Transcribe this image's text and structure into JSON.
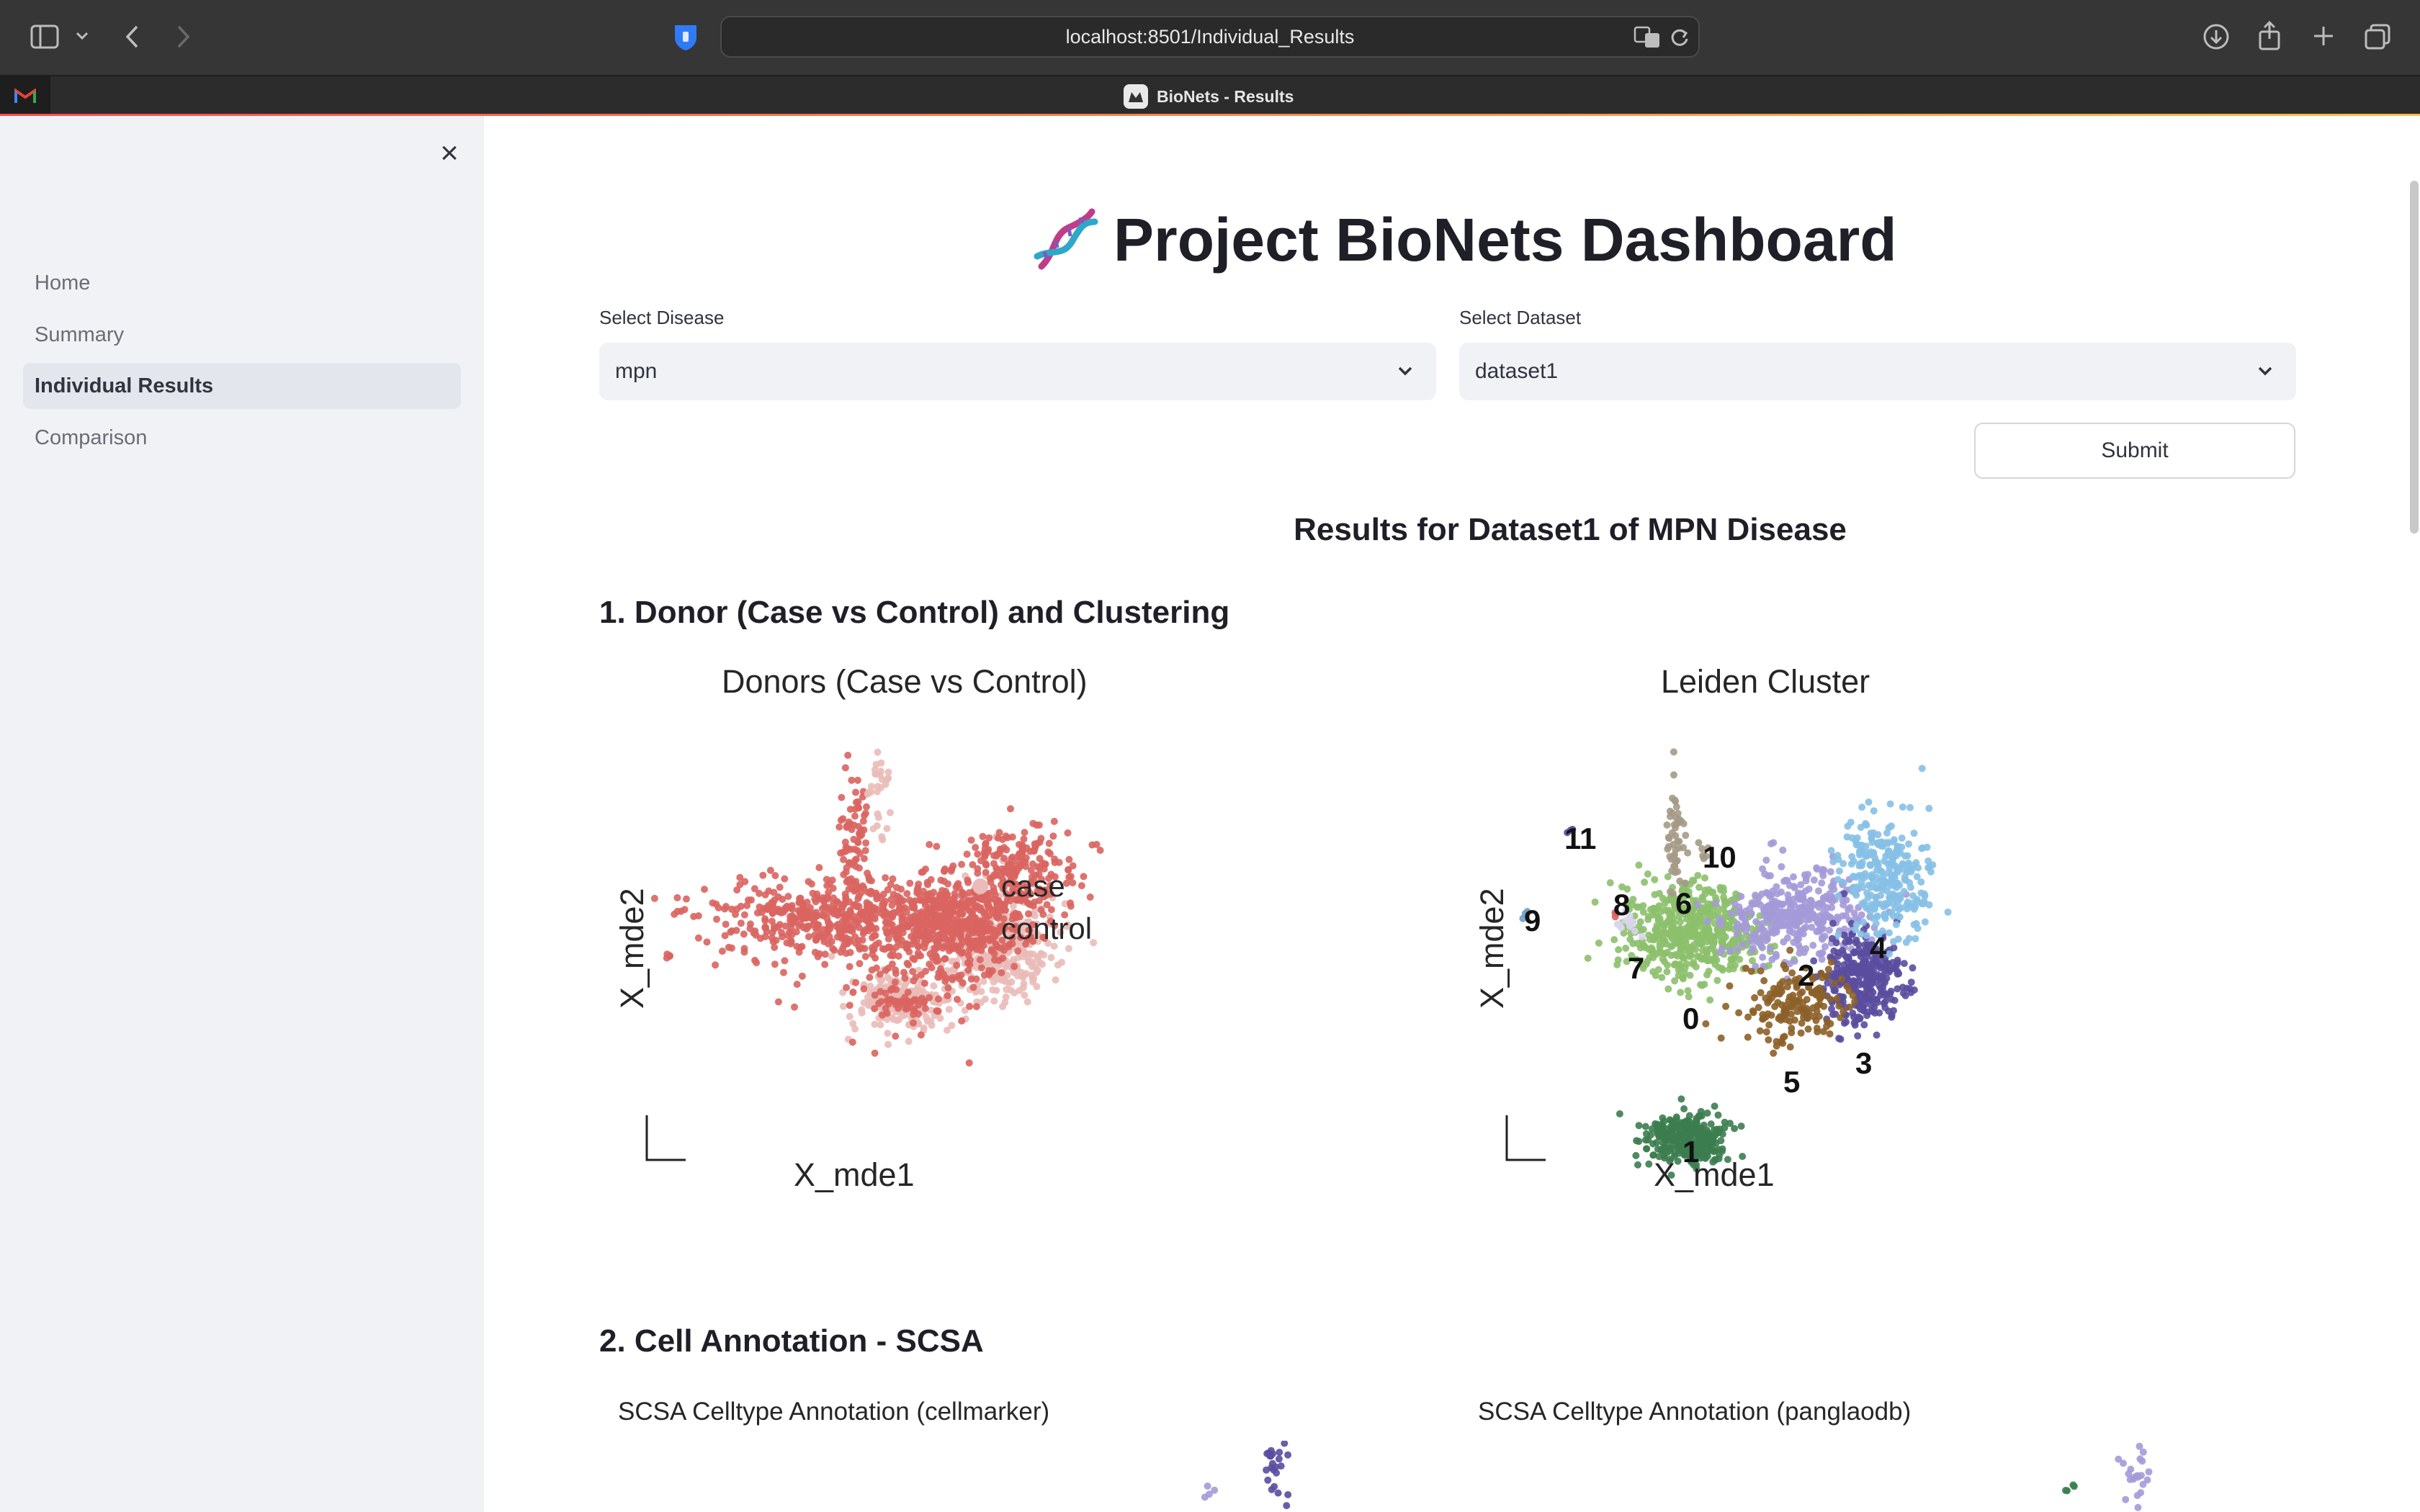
{
  "browser": {
    "url": "localhost:8501/Individual_Results",
    "tab_title": "BioNets - Results"
  },
  "sidebar": {
    "items": [
      {
        "label": "Home",
        "active": false
      },
      {
        "label": "Summary",
        "active": false
      },
      {
        "label": "Individual Results",
        "active": true
      },
      {
        "label": "Comparison",
        "active": false
      }
    ]
  },
  "header": {
    "title": "Project BioNets Dashboard"
  },
  "form": {
    "disease_label": "Select Disease",
    "disease_value": "mpn",
    "dataset_label": "Select Dataset",
    "dataset_value": "dataset1",
    "submit_label": "Submit"
  },
  "results": {
    "heading": "Results for Dataset1 of MPN Disease"
  },
  "sections": [
    {
      "title": "1. Donor (Case vs Control) and Clustering"
    },
    {
      "title": "2. Cell Annotation - SCSA"
    }
  ],
  "colors": {
    "case": "#eabbb8",
    "control": "#d9645f",
    "accent": "#ff4b4b"
  },
  "donor_plot": {
    "title": "Donors (Case vs Control)",
    "xlabel": "X_mde1",
    "ylabel": "X_mde2",
    "legend": [
      {
        "name": "case",
        "color": "#eabbb8"
      },
      {
        "name": "control",
        "color": "#d9645f"
      }
    ]
  },
  "cluster_plot": {
    "title": "Leiden Cluster",
    "xlabel": "X_mde1",
    "ylabel": "X_mde2",
    "clusters": [
      "0",
      "1",
      "2",
      "3",
      "4",
      "5",
      "6",
      "7",
      "8",
      "9",
      "10",
      "11"
    ]
  },
  "scsa_plots": [
    {
      "title": "SCSA Celltype Annotation (cellmarker)"
    },
    {
      "title": "SCSA Celltype Annotation (panglaodb)"
    }
  ]
}
